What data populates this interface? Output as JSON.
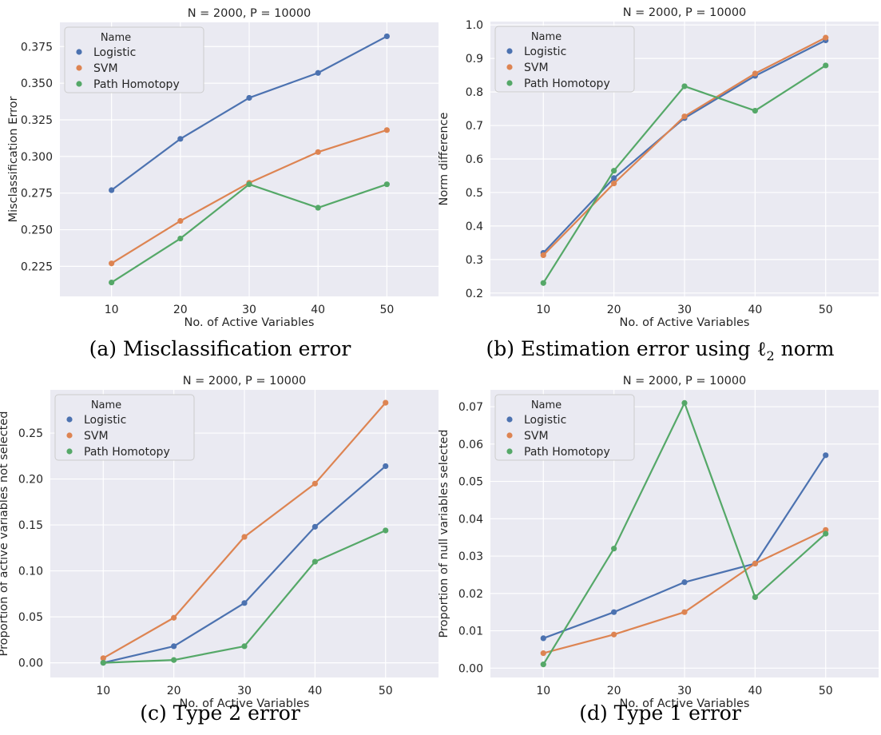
{
  "figure": {
    "panels": [
      {
        "id": "a",
        "caption_prefix": "(a) ",
        "caption_text": "Misclassification error",
        "caption_sub": ""
      },
      {
        "id": "b",
        "caption_prefix": "(b) ",
        "caption_text": "Estimation error using ℓ",
        "caption_sub": "2",
        "caption_suffix": " norm"
      },
      {
        "id": "c",
        "caption_prefix": "(c) ",
        "caption_text": "Type 2 error",
        "caption_sub": ""
      },
      {
        "id": "d",
        "caption_prefix": "(d) ",
        "caption_text": "Type 1 error",
        "caption_sub": ""
      }
    ]
  },
  "colors": {
    "background": "#eaeaf2",
    "grid": "#ffffff",
    "logistic": "#4c72b0",
    "svm": "#dd8452",
    "path_homotopy": "#55a868"
  },
  "chart_data": [
    {
      "type": "line",
      "title": "N = 2000, P = 10000",
      "xlabel": "No. of Active Variables",
      "ylabel": "Misclassification Error",
      "legend_title": "Name",
      "legend_position": "top-left",
      "grid": true,
      "x": [
        10,
        20,
        30,
        40,
        50
      ],
      "xticks": [
        "10",
        "20",
        "30",
        "40",
        "50"
      ],
      "xlim": [
        2.5,
        57.5
      ],
      "yticks": [
        "0.225",
        "0.250",
        "0.275",
        "0.300",
        "0.325",
        "0.350",
        "0.375"
      ],
      "ylim": [
        0.2045,
        0.3915
      ],
      "series": [
        {
          "name": "Logistic",
          "values": [
            0.277,
            0.312,
            0.34,
            0.357,
            0.382
          ]
        },
        {
          "name": "SVM",
          "values": [
            0.227,
            0.256,
            0.282,
            0.303,
            0.318
          ]
        },
        {
          "name": "Path Homotopy",
          "values": [
            0.214,
            0.244,
            0.281,
            0.265,
            0.281
          ]
        }
      ]
    },
    {
      "type": "line",
      "title": "N = 2000, P = 10000",
      "xlabel": "No. of Active Variables",
      "ylabel": "Norm difference",
      "legend_title": "Name",
      "legend_position": "top-left",
      "grid": true,
      "x": [
        10,
        20,
        30,
        40,
        50
      ],
      "xticks": [
        "10",
        "20",
        "30",
        "40",
        "50"
      ],
      "xlim": [
        2.5,
        57.5
      ],
      "yticks": [
        "0.2",
        "0.3",
        "0.4",
        "0.5",
        "0.6",
        "0.7",
        "0.8",
        "0.9",
        "1.0"
      ],
      "ylim": [
        0.19,
        1.01
      ],
      "series": [
        {
          "name": "Logistic",
          "values": [
            0.32,
            0.543,
            0.722,
            0.848,
            0.954
          ]
        },
        {
          "name": "SVM",
          "values": [
            0.313,
            0.527,
            0.727,
            0.855,
            0.962
          ]
        },
        {
          "name": "Path Homotopy",
          "values": [
            0.23,
            0.565,
            0.817,
            0.744,
            0.879
          ]
        }
      ]
    },
    {
      "type": "line",
      "title": "N = 2000, P = 10000",
      "xlabel": "No. of Active Variables",
      "ylabel": "Proportion of active variables not selected",
      "legend_title": "Name",
      "legend_position": "top-left",
      "grid": true,
      "x": [
        10,
        20,
        30,
        40,
        50
      ],
      "xticks": [
        "10",
        "20",
        "30",
        "40",
        "50"
      ],
      "xlim": [
        2.5,
        57.5
      ],
      "yticks": [
        "0.00",
        "0.05",
        "0.10",
        "0.15",
        "0.20",
        "0.25"
      ],
      "ylim": [
        -0.016,
        0.297
      ],
      "series": [
        {
          "name": "Logistic",
          "values": [
            0.0,
            0.018,
            0.065,
            0.148,
            0.214
          ]
        },
        {
          "name": "SVM",
          "values": [
            0.005,
            0.049,
            0.137,
            0.195,
            0.283
          ]
        },
        {
          "name": "Path Homotopy",
          "values": [
            0.0,
            0.003,
            0.018,
            0.11,
            0.144
          ]
        }
      ]
    },
    {
      "type": "line",
      "title": "N = 2000, P = 10000",
      "xlabel": "No. of Active Variables",
      "ylabel": "Proportion of null variables selected",
      "legend_title": "Name",
      "legend_position": "top-left",
      "grid": true,
      "x": [
        10,
        20,
        30,
        40,
        50
      ],
      "xticks": [
        "10",
        "20",
        "30",
        "40",
        "50"
      ],
      "xlim": [
        2.5,
        57.5
      ],
      "yticks": [
        "0.00",
        "0.01",
        "0.02",
        "0.03",
        "0.04",
        "0.05",
        "0.06",
        "0.07"
      ],
      "ylim": [
        -0.0025,
        0.0745
      ],
      "series": [
        {
          "name": "Logistic",
          "values": [
            0.008,
            0.015,
            0.023,
            0.028,
            0.057
          ]
        },
        {
          "name": "SVM",
          "values": [
            0.004,
            0.009,
            0.015,
            0.028,
            0.037
          ]
        },
        {
          "name": "Path Homotopy",
          "values": [
            0.001,
            0.032,
            0.071,
            0.019,
            0.036
          ]
        }
      ]
    }
  ]
}
